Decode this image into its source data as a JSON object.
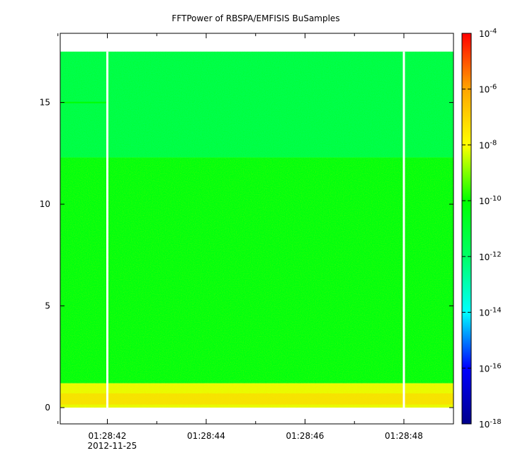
{
  "chart_data": {
    "type": "heatmap",
    "title": "FFTPower of RBSPA/EMFISIS  BuSamples",
    "xlabel": "",
    "ylabel": "",
    "x_range": [
      "01:28:40.05",
      "01:28:48.00"
    ],
    "x_ticks": [
      {
        "value": "01:28:42",
        "label": "01:28:42",
        "sublabel": "2012-11-25"
      },
      {
        "value": "01:28:44",
        "label": "01:28:44",
        "sublabel": ""
      },
      {
        "value": "01:28:46",
        "label": "01:28:46",
        "sublabel": ""
      },
      {
        "value": "01:28:48",
        "label": "01:28:48",
        "sublabel": ""
      }
    ],
    "x_minor_ticks": [
      "01:28:41",
      "01:28:43",
      "01:28:45",
      "01:28:47"
    ],
    "ylim": [
      -0.8,
      18.4
    ],
    "y_ticks": [
      0,
      5,
      10,
      15
    ],
    "data_gaps": [
      "01:28:42",
      "01:28:48"
    ],
    "bands": [
      {
        "y_from": 0.0,
        "y_to": 1.2,
        "log_power": -8.2
      },
      {
        "y_from": 1.2,
        "y_to": 12.3,
        "log_power": -10.3
      },
      {
        "y_from": 12.3,
        "y_to": 17.5,
        "log_power": -11.5
      }
    ],
    "features": [
      {
        "time_from": "01:28:40.05",
        "time_to": "01:28:42",
        "y": 15.0,
        "log_power": -10.0
      }
    ],
    "colorbar": {
      "scale": "log",
      "range": [
        1e-18,
        0.0001
      ],
      "ticks": [
        {
          "value": 0.0001,
          "base": "10",
          "exp": "-4"
        },
        {
          "value": 1e-06,
          "base": "10",
          "exp": "-6"
        },
        {
          "value": 1e-08,
          "base": "10",
          "exp": "-8"
        },
        {
          "value": 1e-10,
          "base": "10",
          "exp": "-10"
        },
        {
          "value": 1e-12,
          "base": "10",
          "exp": "-12"
        },
        {
          "value": 1e-14,
          "base": "10",
          "exp": "-14"
        },
        {
          "value": 1e-16,
          "base": "10",
          "exp": "-16"
        },
        {
          "value": 1e-18,
          "base": "10",
          "exp": "-18"
        }
      ],
      "colors": [
        "#00008b",
        "#0000ff",
        "#00ffff",
        "#00ff66",
        "#00ff00",
        "#ffff00",
        "#ffa500",
        "#ff0000"
      ]
    },
    "grid": false
  }
}
